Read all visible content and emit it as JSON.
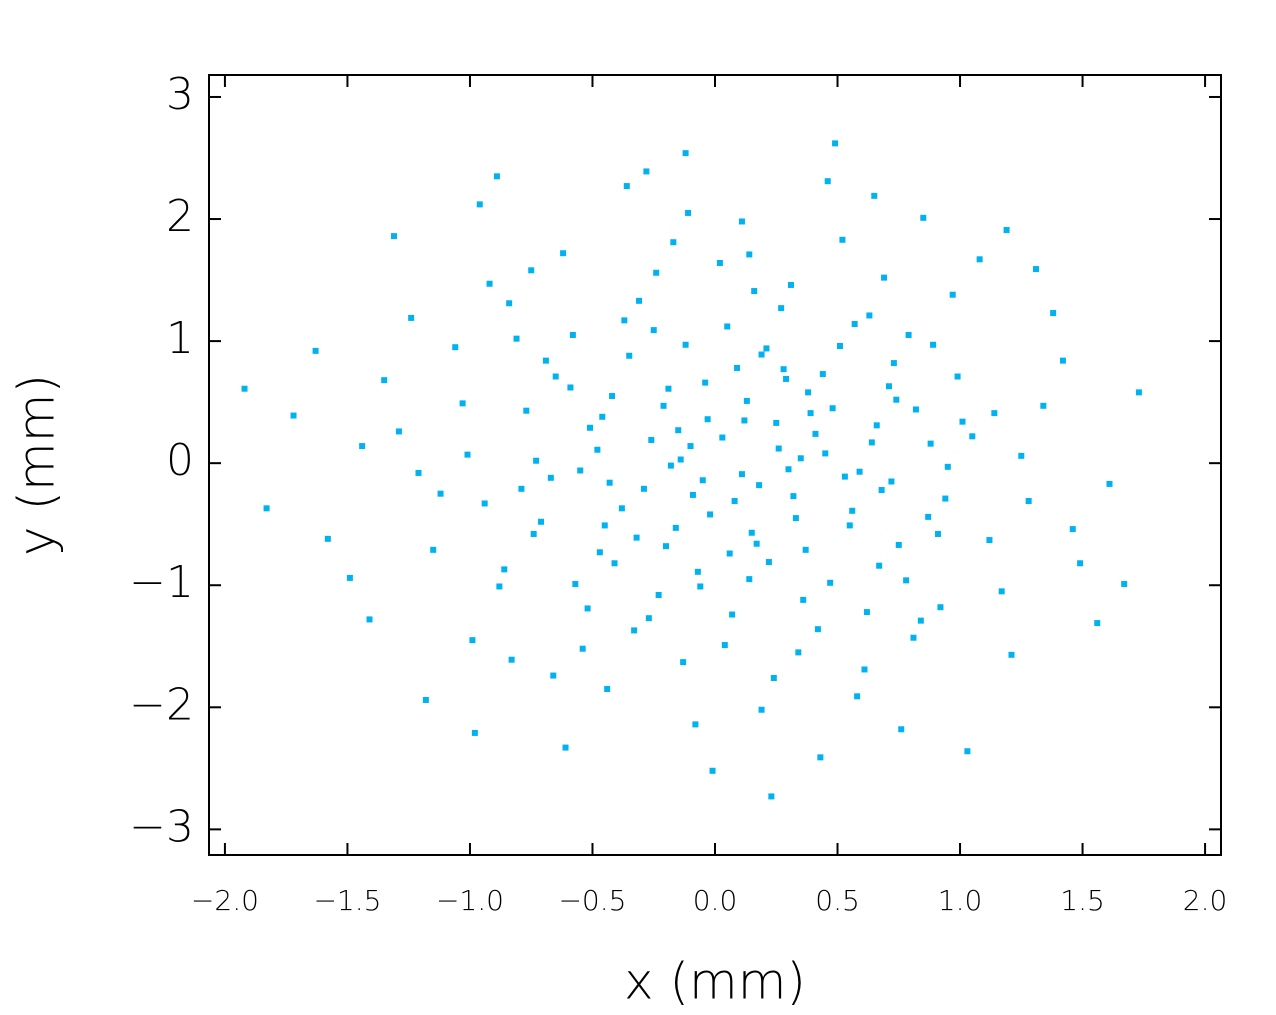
{
  "chart_data": {
    "type": "scatter",
    "xlabel": "x  (mm)",
    "ylabel": "y  (mm)",
    "color": "#00b2ef",
    "grid": false,
    "xlim": [
      -2.065,
      2.065
    ],
    "ylim": [
      -3.21,
      3.18
    ],
    "xticks": [
      {
        "value": -2,
        "label": "−2.0"
      },
      {
        "value": -1.5,
        "label": "−1.5"
      },
      {
        "value": -1,
        "label": "−1.0"
      },
      {
        "value": -0.5,
        "label": "−0.5"
      },
      {
        "value": 0,
        "label": "0.0"
      },
      0.5,
      {
        "value": 1,
        "label": "1.0"
      },
      1.5,
      {
        "value": 2,
        "label": "2.0"
      }
    ],
    "yticks": [
      {
        "value": -3,
        "label": "−3"
      },
      {
        "value": -2,
        "label": "−2"
      },
      {
        "value": -1,
        "label": "−1"
      },
      0,
      1,
      2,
      3
    ],
    "x": [
      0.12,
      -0.41,
      0.63,
      -0.05,
      0.28,
      -0.77,
      0.91,
      0.02,
      -0.33,
      0.45,
      -1.12,
      0.17,
      0.74,
      -0.58,
      0.36,
      -0.19,
      1.05,
      -0.88,
      0.08,
      0.52,
      -0.26,
      0.33,
      -0.67,
      0.81,
      -0.11,
      0.21,
      -1.35,
      0.59,
      -0.44,
      0.14,
      1.28,
      -0.92,
      0.39,
      -0.16,
      0.67,
      -0.51,
      0.05,
      1.42,
      -1.58,
      0.24,
      -0.35,
      0.88,
      -0.71,
      0.46,
      -0.08,
      0.97,
      -1.01,
      0.13,
      -0.29,
      0.56,
      -0.62,
      1.17,
      -0.14,
      0.31,
      -0.83,
      0.71,
      -0.23,
      0.43,
      -1.24,
      0.09,
      1.61,
      -0.47,
      0.26,
      -0.96,
      0.62,
      -0.02,
      0.79,
      -0.55,
      1.34,
      -1.41,
      0.18,
      -0.31,
      0.94,
      -0.69,
      0.37,
      -0.12,
      0.66,
      -1.72,
      0.04,
      1.08,
      -0.38,
      0.51,
      -0.86,
      0.23,
      1.49,
      -0.21,
      0.72,
      -1.18,
      0.11,
      -0.48,
      0.85,
      -0.07,
      0.41,
      -0.75,
      1.21,
      -0.18,
      0.58,
      -1.29,
      0.29,
      -0.52,
      0.99,
      -0.03,
      0.47,
      -0.94,
      1.73,
      -0.36,
      0.15,
      -0.61,
      0.82,
      -0.25,
      1.12,
      -1.06,
      0.35,
      -0.13,
      0.69,
      -0.79,
      0.19,
      -1.49,
      0.55,
      -0.42,
      1.38,
      -0.09,
      0.76,
      -0.65,
      0.27,
      -1.83,
      0.03,
      0.92,
      -0.32,
      0.49,
      -0.99,
      0.64,
      -0.17,
      1.25,
      -0.57,
      0.32,
      -1.31,
      0.87,
      -0.04,
      0.42,
      -0.73,
      1.56,
      0.16,
      -0.45,
      0.73,
      -1.15,
      0.07,
      1.01,
      -0.28,
      0.53,
      -0.84,
      0.22,
      -1.63,
      0.78,
      -0.15,
      1.19,
      -0.54,
      0.38,
      -0.01,
      0.95,
      -0.37,
      0.61,
      -1.03,
      0.25,
      1.46,
      -0.66,
      0.11,
      -0.24,
      0.84,
      -1.21,
      0.44,
      -0.89,
      0.68,
      -0.06,
      1.31,
      -0.46,
      0.19,
      -1.44,
      0.57,
      -0.2,
      1.03,
      -0.74,
      0.3,
      -0.12,
      0.89,
      -1.92,
      0.06,
      0.65,
      -0.59,
      1.67,
      -0.27,
      0.48,
      -0.98,
      0.14,
      1.14,
      -0.43,
      0.75,
      -0.81,
      0.34,
      -0.1
    ],
    "values": [
      0.35,
      -0.82,
      1.21,
      -0.14,
      0.77,
      0.43,
      -0.58,
      1.64,
      -1.37,
      0.08,
      -0.25,
      -0.66,
      0.52,
      1.05,
      -1.12,
      0.61,
      0.22,
      -1.01,
      -0.31,
      1.83,
      0.19,
      -0.45,
      -0.12,
      -1.43,
      2.05,
      0.94,
      0.68,
      -0.07,
      -1.85,
      -0.95,
      -0.31,
      1.47,
      0.41,
      -0.53,
      -0.84,
      0.29,
      1.12,
      0.84,
      -0.62,
      -1.76,
      0.88,
      0.16,
      -0.48,
      2.31,
      -2.14,
      1.38,
      0.07,
      0.51,
      -0.21,
      -0.39,
      1.72,
      -1.05,
      0.03,
      1.46,
      -1.61,
      0.63,
      -1.08,
      -2.41,
      1.19,
      0.78,
      -0.17,
      -0.73,
      0.12,
      2.12,
      -1.22,
      -0.42,
      1.05,
      -0.06,
      0.47,
      -1.28,
      -0.18,
      1.33,
      -0.29,
      0.84,
      -0.71,
      2.54,
      0.31,
      0.39,
      -1.49,
      1.67,
      -0.37,
      0.96,
      -0.87,
      -2.73,
      -0.82,
      0.47,
      -0.15,
      -1.94,
      1.98,
      0.11,
      2.01,
      -0.89,
      0.24,
      1.58,
      -1.57,
      -0.02,
      -1.91,
      0.26,
      0.69,
      -1.19,
      0.71,
      0.36,
      -0.98,
      -0.33,
      0.58,
      2.27,
      -0.57,
      -2.33,
      0.44,
      1.09,
      -0.63,
      0.95,
      0.04,
      -1.63,
      1.52,
      -0.21,
      0.89,
      -0.94,
      -0.51,
      0.55,
      1.23,
      -0.26,
      -2.18,
      0.71,
      1.27,
      -0.37,
      0.21,
      -1.18,
      -0.61,
      2.62,
      -1.45,
      0.17,
      1.81,
      0.06,
      -0.99,
      -0.27,
      1.86,
      -0.44,
      0.66,
      -1.36,
      0.02,
      -1.31,
      1.41,
      -0.51,
      0.82,
      -0.71,
      -1.24,
      0.34,
      2.39,
      -0.11,
      1.31,
      -0.81,
      0.92,
      -0.96,
      0.27,
      1.91,
      -1.52,
      0.58,
      -2.52,
      -0.03,
      1.17,
      -1.69,
      0.49,
      0.33,
      -0.54,
      -1.74,
      -0.09,
      1.56,
      -1.29,
      -0.08,
      0.73,
      2.35,
      -0.22,
      -1.01,
      1.59,
      0.38,
      -2.02,
      0.14,
      1.14,
      -0.68,
      -2.36,
      -0.58,
      -0.05,
      0.97,
      0.97,
      0.61,
      -0.74,
      2.19,
      0.62,
      -0.99,
      -1.27,
      0.45,
      -2.21,
      1.71,
      0.41,
      -0.16,
      -0.67,
      1.02,
      -1.55,
      0.14
    ]
  }
}
